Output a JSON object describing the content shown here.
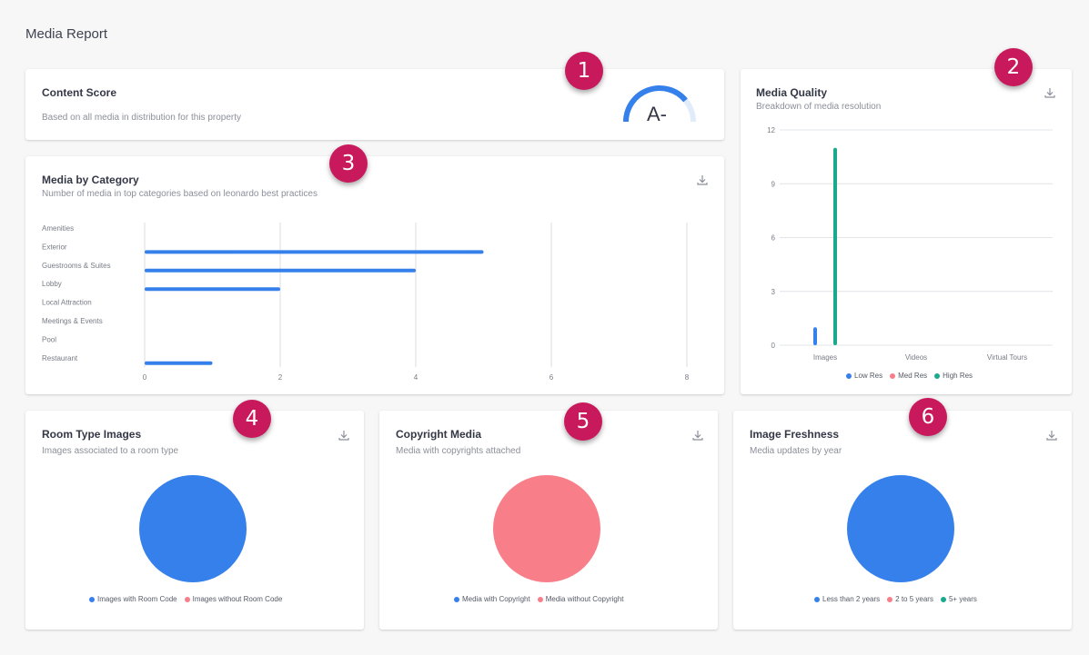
{
  "page": {
    "title": "Media Report"
  },
  "colors": {
    "blue": "#3580ea",
    "pink": "#f87f89",
    "teal": "#1ba98e",
    "badge": "#c8195c"
  },
  "badges": [
    "1",
    "2",
    "3",
    "4",
    "5",
    "6"
  ],
  "content_score": {
    "title": "Content Score",
    "subtitle": "Based on all media in distribution for this property",
    "grade": "A-",
    "gauge_fraction": 0.78
  },
  "media_quality": {
    "title": "Media Quality",
    "subtitle": "Breakdown of media resolution",
    "download_icon": "download-icon"
  },
  "media_by_category": {
    "title": "Media by Category",
    "subtitle": "Number of media in top categories based on leonardo best practices",
    "download_icon": "download-icon"
  },
  "room_type_images": {
    "title": "Room Type Images",
    "subtitle": "Images associated to a room type",
    "legend": [
      "Images with Room Code",
      "Images without Room Code"
    ]
  },
  "copyright_media": {
    "title": "Copyright Media",
    "subtitle": "Media with copyrights attached",
    "legend": [
      "Media with Copyright",
      "Media without Copyright"
    ]
  },
  "image_freshness": {
    "title": "Image Freshness",
    "subtitle": "Media updates by year",
    "legend": [
      "Less than 2 years",
      "2 to 5 years",
      "5+ years"
    ]
  },
  "chart_data": [
    {
      "id": "media_quality",
      "type": "bar",
      "categories": [
        "Images",
        "Videos",
        "Virtual Tours"
      ],
      "series": [
        {
          "name": "Low Res",
          "color": "#3580ea",
          "values": [
            1,
            0,
            0
          ]
        },
        {
          "name": "Med Res",
          "color": "#f87f89",
          "values": [
            0,
            0,
            0
          ]
        },
        {
          "name": "High Res",
          "color": "#1ba98e",
          "values": [
            11,
            0,
            0
          ]
        }
      ],
      "y_ticks": [
        "12",
        "9",
        "6",
        "3",
        "0"
      ],
      "ylim": [
        0,
        12
      ],
      "grid": true,
      "legend": "bottom"
    },
    {
      "id": "media_by_category",
      "type": "bar",
      "orientation": "horizontal",
      "categories": [
        "Amenities",
        "Exterior",
        "Guestrooms & Suites",
        "Lobby",
        "Local Attraction",
        "Meetings & Events",
        "Pool",
        "Restaurant"
      ],
      "values": [
        0,
        5,
        4,
        2,
        0,
        0,
        0,
        1
      ],
      "x_ticks": [
        "0",
        "2",
        "4",
        "6",
        "8"
      ],
      "xlim": [
        0,
        8
      ],
      "grid": true
    },
    {
      "id": "room_type_images",
      "type": "pie",
      "labels": [
        "Images with Room Code",
        "Images without Room Code"
      ],
      "values": [
        100,
        0
      ],
      "colors": [
        "#3580ea",
        "#f87f89"
      ],
      "legend": "bottom"
    },
    {
      "id": "copyright_media",
      "type": "pie",
      "labels": [
        "Media with Copyright",
        "Media without Copyright"
      ],
      "values": [
        0,
        100
      ],
      "colors": [
        "#3580ea",
        "#f87f89"
      ],
      "legend": "bottom"
    },
    {
      "id": "image_freshness",
      "type": "pie",
      "labels": [
        "Less than 2 years",
        "2 to 5 years",
        "5+ years"
      ],
      "values": [
        100,
        0,
        0
      ],
      "colors": [
        "#3580ea",
        "#f87f89",
        "#1ba98e"
      ],
      "legend": "bottom"
    }
  ]
}
